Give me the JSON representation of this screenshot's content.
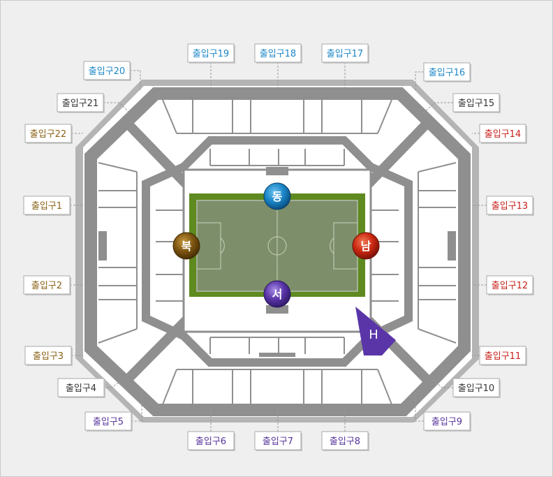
{
  "colors": {
    "background": "#efefef",
    "outer_ring": "#b4b4b4",
    "stand": "#ffffff",
    "concourse": "#8f8f8f",
    "field_border": "#5f8a1f",
    "pitch": "#7d8f6a",
    "gate_blue": "#1b86c8",
    "gate_brown": "#8a6116",
    "gate_red": "#c8201a",
    "gate_purple": "#55339a",
    "gate_dark": "#333333"
  },
  "directions": {
    "east": "동",
    "west": "서",
    "south": "남",
    "north": "북"
  },
  "helipad_label": "H",
  "gates": [
    {
      "label": "출입구1",
      "color": "#8a6116"
    },
    {
      "label": "출입구2",
      "color": "#8a6116"
    },
    {
      "label": "출입구3",
      "color": "#8a6116"
    },
    {
      "label": "출입구4",
      "color": "#333333"
    },
    {
      "label": "출입구5",
      "color": "#55339a"
    },
    {
      "label": "출입구6",
      "color": "#55339a"
    },
    {
      "label": "출입구7",
      "color": "#55339a"
    },
    {
      "label": "출입구8",
      "color": "#55339a"
    },
    {
      "label": "출입구9",
      "color": "#55339a"
    },
    {
      "label": "출입구10",
      "color": "#333333"
    },
    {
      "label": "출입구11",
      "color": "#c8201a"
    },
    {
      "label": "출입구12",
      "color": "#c8201a"
    },
    {
      "label": "출입구13",
      "color": "#c8201a"
    },
    {
      "label": "출입구14",
      "color": "#c8201a"
    },
    {
      "label": "출입구15",
      "color": "#333333"
    },
    {
      "label": "출입구16",
      "color": "#1b86c8"
    },
    {
      "label": "출입구17",
      "color": "#1b86c8"
    },
    {
      "label": "출입구18",
      "color": "#1b86c8"
    },
    {
      "label": "출입구19",
      "color": "#1b86c8"
    },
    {
      "label": "출입구20",
      "color": "#1b86c8"
    },
    {
      "label": "출입구21",
      "color": "#333333"
    },
    {
      "label": "출입구22",
      "color": "#8a6116"
    }
  ]
}
